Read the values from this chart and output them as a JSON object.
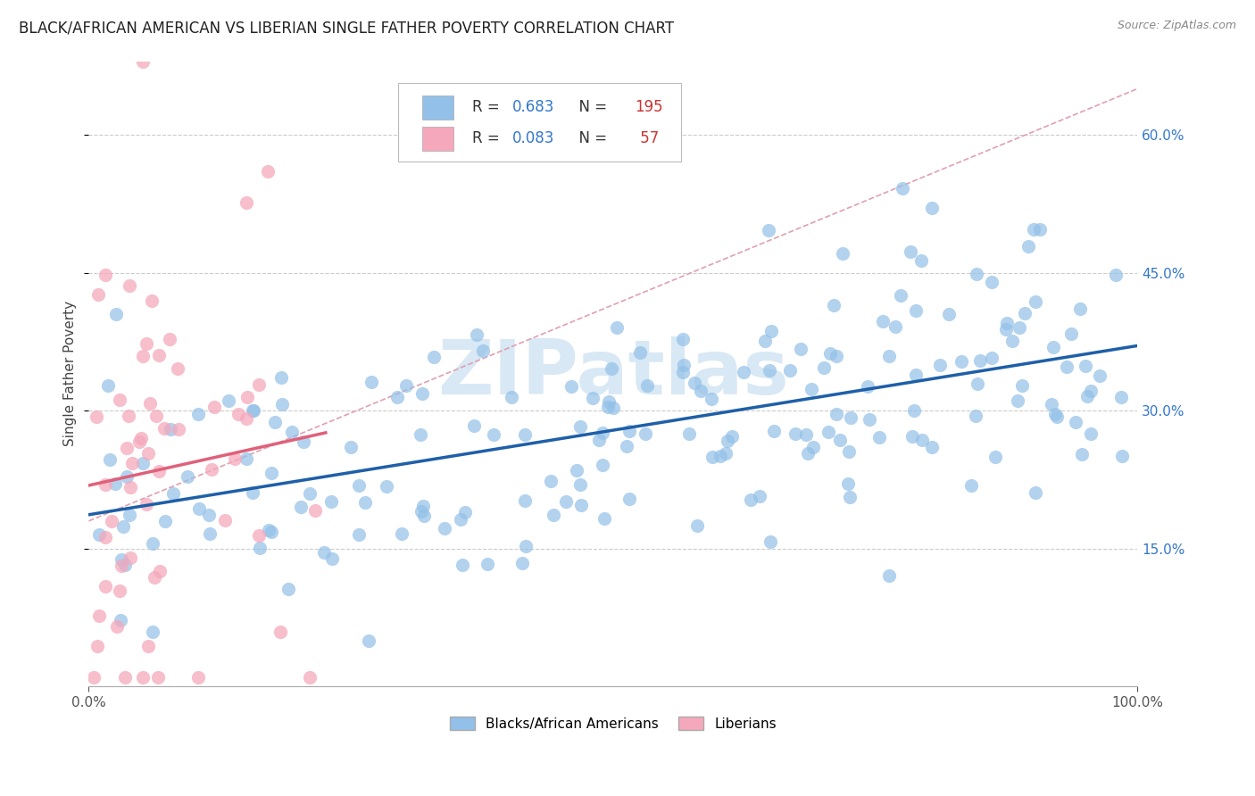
{
  "title": "BLACK/AFRICAN AMERICAN VS LIBERIAN SINGLE FATHER POVERTY CORRELATION CHART",
  "source": "Source: ZipAtlas.com",
  "ylabel": "Single Father Poverty",
  "xlim": [
    0.0,
    1.0
  ],
  "ylim": [
    0.0,
    0.68
  ],
  "yticks": [
    0.15,
    0.3,
    0.45,
    0.6
  ],
  "ytick_labels": [
    "15.0%",
    "30.0%",
    "45.0%",
    "60.0%"
  ],
  "xticks": [
    0.0,
    1.0
  ],
  "xtick_labels": [
    "0.0%",
    "100.0%"
  ],
  "legend_bottom_labels": [
    "Blacks/African Americans",
    "Liberians"
  ],
  "blue_scatter_color": "#92c0e8",
  "pink_scatter_color": "#f5a8bc",
  "blue_line_color": "#1e5fa8",
  "pink_line_color": "#e0607a",
  "dashed_line_color": "#e0a0b0",
  "watermark_color": "#d8e8f5",
  "R_blue": 0.683,
  "N_blue": 195,
  "R_pink": 0.083,
  "N_pink": 57,
  "background_color": "#ffffff",
  "grid_color": "#cccccc",
  "title_fontsize": 12,
  "source_fontsize": 9,
  "tick_fontsize": 11,
  "ylabel_fontsize": 11,
  "legend_text_color": "#333399",
  "legend_num_color": "#3377cc",
  "legend_count_color": "#cc3333"
}
